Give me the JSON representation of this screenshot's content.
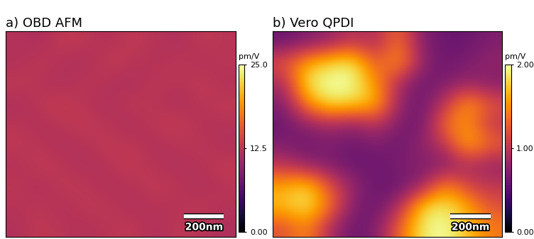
{
  "chart_data": [
    {
      "type": "heatmap",
      "title": "a) OBD AFM",
      "tick_labels": false,
      "xlim": [
        0,
        1150
      ],
      "ylim": [
        0,
        1150
      ],
      "scale_bar": {
        "length": 200,
        "label": "200nm"
      },
      "colorbar": {
        "label": "pm/V",
        "range": [
          0,
          25
        ],
        "ticks": [
          {
            "value": 0,
            "label": "0.00"
          },
          12.5,
          {
            "value": 25,
            "label": "25.0"
          }
        ]
      },
      "cells": [
        [
          12.1,
          11.4,
          13.0,
          12.6,
          11.8,
          12.9,
          12.2,
          11.6,
          12.8,
          12.3
        ],
        [
          11.7,
          12.8,
          12.0,
          11.5,
          13.1,
          12.4,
          11.9,
          12.7,
          11.8,
          12.5
        ],
        [
          12.9,
          12.2,
          11.6,
          12.7,
          12.0,
          11.4,
          12.8,
          12.1,
          13.0,
          11.9
        ],
        [
          11.5,
          12.6,
          13.2,
          12.1,
          11.7,
          12.9,
          12.3,
          11.6,
          12.4,
          12.8
        ],
        [
          12.4,
          11.8,
          12.5,
          13.0,
          12.2,
          11.6,
          12.7,
          13.1,
          11.9,
          12.2
        ],
        [
          12.8,
          12.3,
          11.7,
          12.2,
          12.9,
          12.5,
          11.8,
          12.4,
          12.6,
          11.7
        ],
        [
          11.9,
          13.0,
          12.4,
          11.6,
          12.3,
          13.0,
          12.1,
          11.7,
          12.2,
          12.9
        ],
        [
          12.6,
          11.7,
          12.9,
          12.5,
          11.8,
          12.2,
          12.9,
          12.5,
          11.6,
          12.4
        ],
        [
          12.2,
          12.5,
          11.8,
          12.8,
          12.6,
          11.7,
          12.3,
          12.0,
          12.8,
          12.1
        ],
        [
          11.8,
          12.9,
          12.3,
          11.9,
          12.4,
          12.8,
          11.6,
          12.7,
          12.3,
          11.6
        ]
      ]
    },
    {
      "type": "heatmap",
      "title": "b) Vero QPDI",
      "tick_labels": false,
      "xlim": [
        0,
        1150
      ],
      "ylim": [
        0,
        1150
      ],
      "scale_bar": {
        "length": 200,
        "label": "200nm"
      },
      "colorbar": {
        "label": "pm/V",
        "range": [
          0,
          2
        ],
        "ticks": [
          {
            "value": 0,
            "label": "0.00"
          },
          {
            "value": 1,
            "label": "1.00"
          },
          {
            "value": 2,
            "label": "2.00"
          }
        ]
      },
      "cells": [
        [
          0.6,
          0.7,
          0.8,
          1.0,
          0.9,
          1.4,
          0.7,
          0.6,
          0.6,
          0.7
        ],
        [
          1.2,
          1.6,
          1.8,
          1.9,
          1.2,
          1.6,
          0.8,
          0.6,
          0.7,
          0.8
        ],
        [
          0.9,
          1.9,
          2.0,
          2.0,
          1.5,
          0.9,
          0.6,
          0.7,
          0.8,
          0.7
        ],
        [
          0.7,
          1.5,
          1.9,
          1.8,
          1.7,
          0.8,
          0.6,
          1.0,
          1.6,
          1.2
        ],
        [
          0.6,
          0.8,
          0.9,
          0.8,
          1.0,
          0.7,
          0.6,
          1.4,
          1.5,
          1.0
        ],
        [
          0.7,
          0.6,
          0.7,
          0.6,
          0.7,
          0.6,
          0.8,
          1.0,
          1.7,
          1.3
        ],
        [
          1.0,
          0.8,
          0.7,
          0.6,
          0.6,
          0.7,
          0.7,
          0.7,
          0.9,
          0.8
        ],
        [
          1.6,
          1.8,
          1.2,
          0.8,
          0.6,
          0.6,
          0.8,
          1.5,
          1.1,
          1.0
        ],
        [
          1.7,
          1.9,
          1.4,
          0.7,
          0.6,
          0.9,
          1.8,
          1.9,
          1.6,
          1.2
        ],
        [
          1.2,
          1.5,
          0.9,
          0.6,
          0.7,
          1.3,
          1.9,
          2.0,
          1.7,
          1.4
        ]
      ]
    }
  ]
}
